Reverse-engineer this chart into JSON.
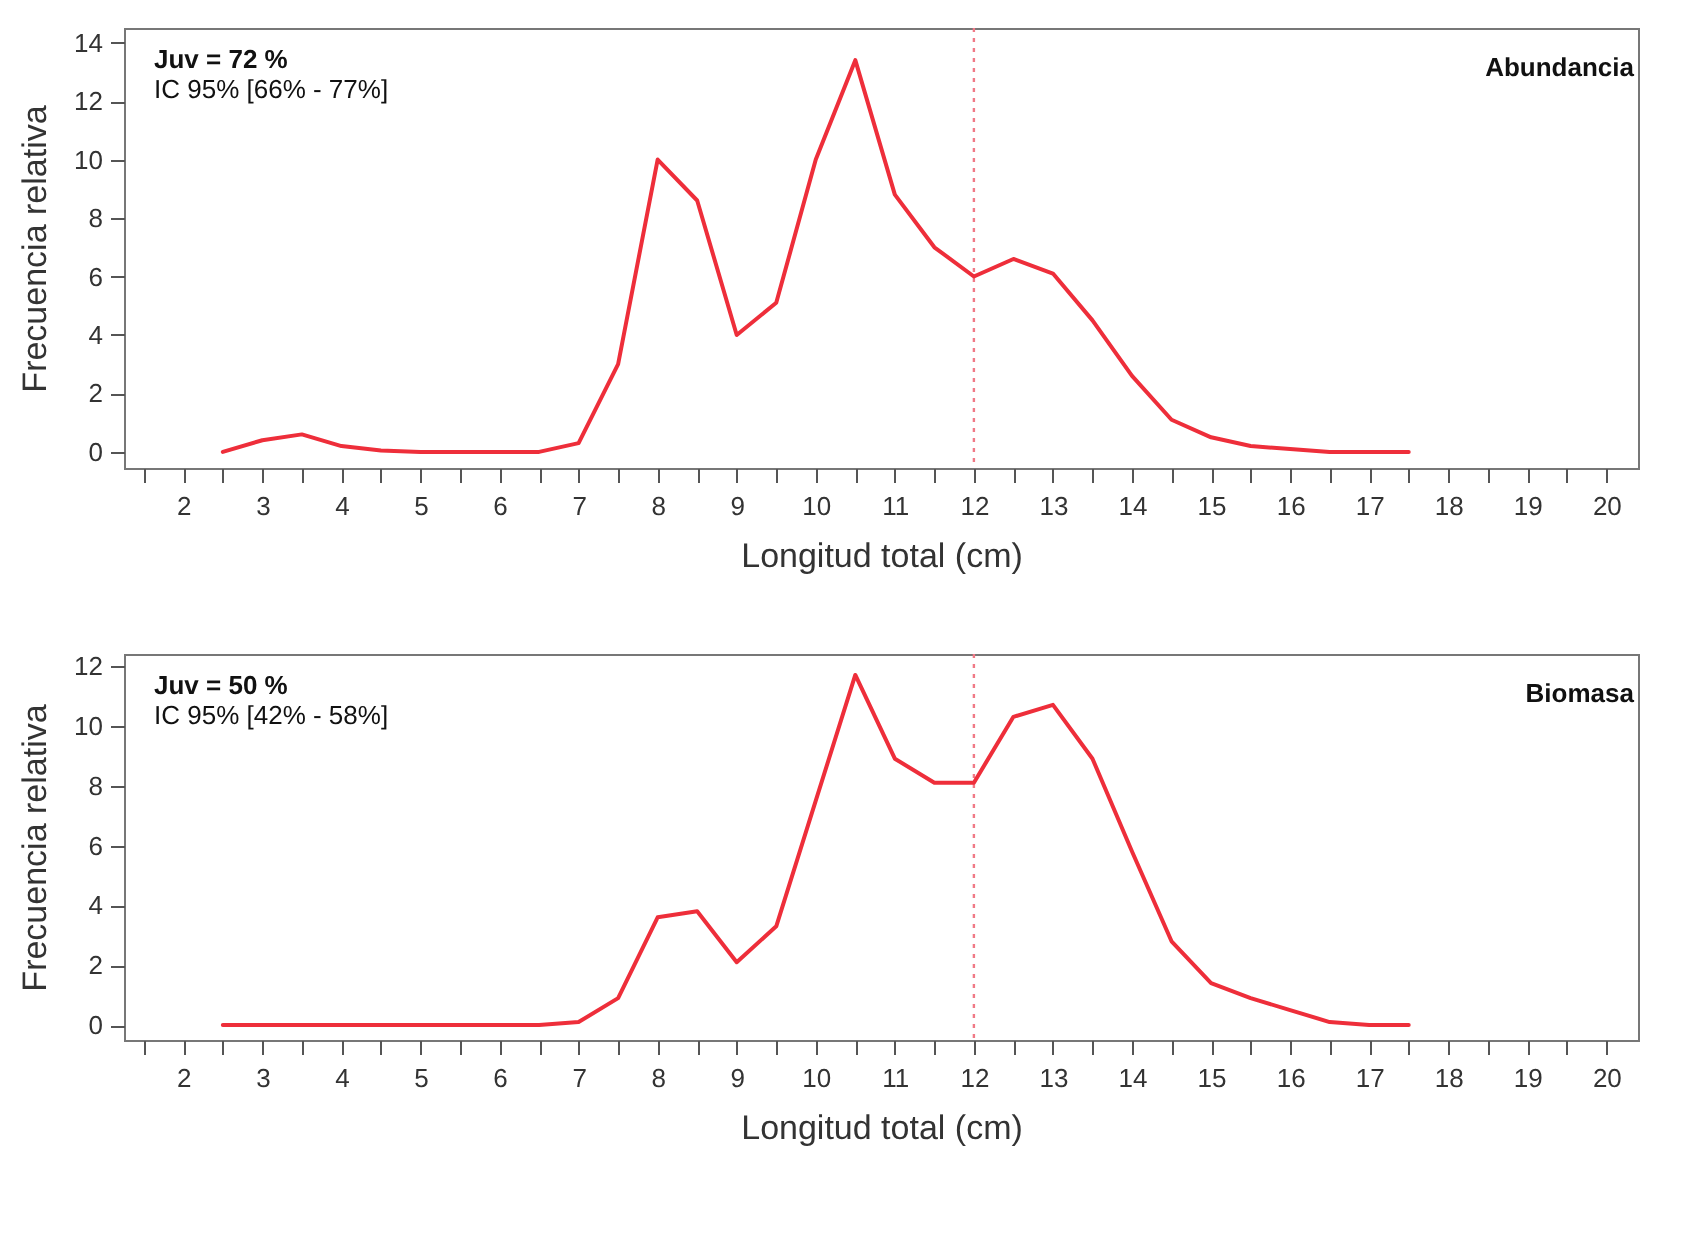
{
  "chart_data": [
    {
      "type": "line",
      "xlabel": "Longitud total (cm)",
      "ylabel": "Frecuencia relativa",
      "annotations": [
        "Juv = 72 %",
        "IC 95% [66% - 77%]",
        "Abundancia"
      ],
      "x": [
        2.5,
        3,
        3.5,
        4,
        4.5,
        5,
        5.5,
        6,
        6.5,
        7,
        7.5,
        8,
        8.5,
        9,
        9.5,
        10,
        10.5,
        11,
        11.5,
        12,
        12.5,
        13,
        13.5,
        14,
        14.5,
        15,
        15.5,
        16,
        16.5,
        17,
        17.5
      ],
      "series": [
        {
          "color": "#ee2e3a",
          "values": [
            0,
            0.4,
            0.6,
            0.2,
            0.05,
            0,
            0,
            0,
            0,
            0.3,
            3,
            10,
            8.6,
            4,
            5.1,
            10,
            13.4,
            8.8,
            7,
            6,
            6.6,
            6.1,
            4.5,
            2.6,
            1.1,
            0.5,
            0.2,
            0.1,
            0,
            0,
            0
          ]
        }
      ],
      "xlim": [
        1.25,
        20.4
      ],
      "xticks": [
        {
          "value": 1.5,
          "label": null
        },
        2,
        {
          "value": 2.5,
          "label": null
        },
        3,
        {
          "value": 3.5,
          "label": null
        },
        4,
        {
          "value": 4.5,
          "label": null
        },
        5,
        {
          "value": 5.5,
          "label": null
        },
        6,
        {
          "value": 6.5,
          "label": null
        },
        7,
        {
          "value": 7.5,
          "label": null
        },
        8,
        {
          "value": 8.5,
          "label": null
        },
        9,
        {
          "value": 9.5,
          "label": null
        },
        10,
        {
          "value": 10.5,
          "label": null
        },
        11,
        {
          "value": 11.5,
          "label": null
        },
        12,
        {
          "value": 12.5,
          "label": null
        },
        13,
        {
          "value": 13.5,
          "label": null
        },
        14,
        {
          "value": 14.5,
          "label": null
        },
        15,
        {
          "value": 15.5,
          "label": null
        },
        16,
        {
          "value": 16.5,
          "label": null
        },
        17,
        {
          "value": 17.5,
          "label": null
        },
        18,
        {
          "value": 18.5,
          "label": null
        },
        19,
        {
          "value": 19.5,
          "label": null
        },
        20
      ],
      "ylim": [
        -0.55,
        14.5
      ],
      "yticks": [
        0,
        2,
        4,
        6,
        8,
        10,
        12,
        14
      ],
      "grid": false,
      "line_style": "solid",
      "marker": "none",
      "ref_lines": [
        {
          "axis": "x",
          "value": 12,
          "color": "#f07a86",
          "line_style": "dotted"
        }
      ]
    },
    {
      "type": "line",
      "xlabel": "Longitud total (cm)",
      "ylabel": "Frecuencia relativa",
      "annotations": [
        "Juv = 50 %",
        "IC 95% [42% - 58%]",
        "Biomasa"
      ],
      "x": [
        2.5,
        3,
        3.5,
        4,
        4.5,
        5,
        5.5,
        6,
        6.5,
        7,
        7.5,
        8,
        8.5,
        9,
        9.5,
        10,
        10.5,
        11,
        11.5,
        12,
        12.5,
        13,
        13.5,
        14,
        14.5,
        15,
        15.5,
        16,
        16.5,
        17,
        17.5
      ],
      "series": [
        {
          "color": "#ee2e3a",
          "values": [
            0,
            0,
            0,
            0,
            0,
            0,
            0,
            0,
            0,
            0.1,
            0.9,
            3.6,
            3.8,
            2.1,
            3.3,
            7.5,
            11.7,
            8.9,
            8.1,
            8.1,
            10.3,
            10.7,
            8.9,
            5.8,
            2.8,
            1.4,
            0.9,
            0.5,
            0.1,
            0,
            0
          ]
        }
      ],
      "xlim": [
        1.25,
        20.4
      ],
      "xticks": [
        {
          "value": 1.5,
          "label": null
        },
        2,
        {
          "value": 2.5,
          "label": null
        },
        3,
        {
          "value": 3.5,
          "label": null
        },
        4,
        {
          "value": 4.5,
          "label": null
        },
        5,
        {
          "value": 5.5,
          "label": null
        },
        6,
        {
          "value": 6.5,
          "label": null
        },
        7,
        {
          "value": 7.5,
          "label": null
        },
        8,
        {
          "value": 8.5,
          "label": null
        },
        9,
        {
          "value": 9.5,
          "label": null
        },
        10,
        {
          "value": 10.5,
          "label": null
        },
        11,
        {
          "value": 11.5,
          "label": null
        },
        12,
        {
          "value": 12.5,
          "label": null
        },
        13,
        {
          "value": 13.5,
          "label": null
        },
        14,
        {
          "value": 14.5,
          "label": null
        },
        15,
        {
          "value": 15.5,
          "label": null
        },
        16,
        {
          "value": 16.5,
          "label": null
        },
        17,
        {
          "value": 17.5,
          "label": null
        },
        18,
        {
          "value": 18.5,
          "label": null
        },
        19,
        {
          "value": 19.5,
          "label": null
        },
        20
      ],
      "ylim": [
        -0.5,
        12.4
      ],
      "yticks": [
        0,
        2,
        4,
        6,
        8,
        10,
        12
      ],
      "grid": false,
      "line_style": "solid",
      "marker": "none",
      "ref_lines": [
        {
          "axis": "x",
          "value": 12,
          "color": "#f07a86",
          "line_style": "dotted"
        }
      ]
    }
  ]
}
